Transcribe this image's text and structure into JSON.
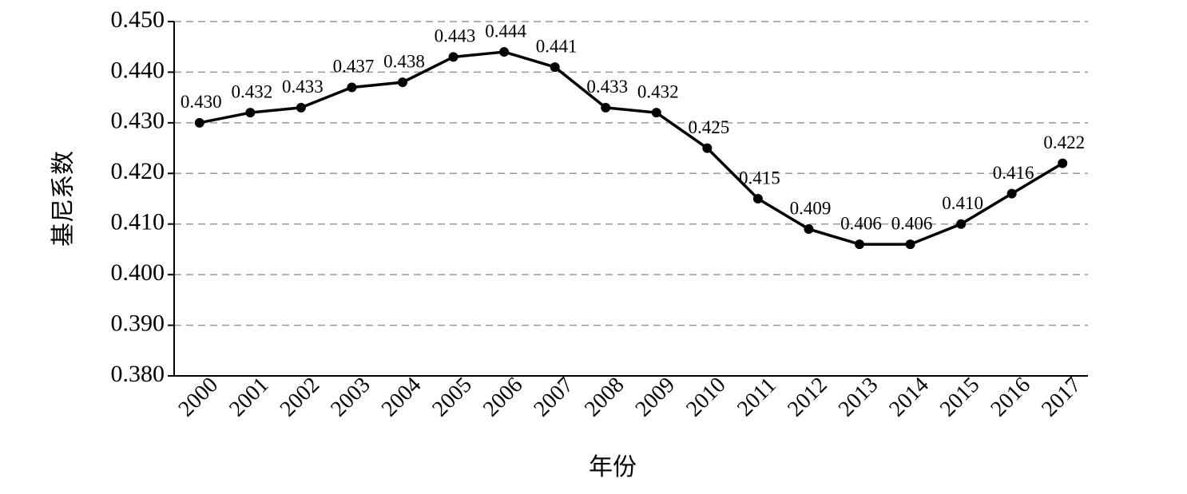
{
  "chart_data": {
    "type": "line",
    "x_label": "年份",
    "y_label": "基尼系数",
    "categories": [
      "2000",
      "2001",
      "2002",
      "2003",
      "2004",
      "2005",
      "2006",
      "2007",
      "2008",
      "2009",
      "2010",
      "2011",
      "2012",
      "2013",
      "2014",
      "2015",
      "2016",
      "2017"
    ],
    "series": [
      {
        "name": "基尼系数",
        "color": "#000000",
        "values": [
          0.43,
          0.432,
          0.433,
          0.437,
          0.438,
          0.443,
          0.444,
          0.441,
          0.433,
          0.432,
          0.425,
          0.415,
          0.409,
          0.406,
          0.406,
          0.41,
          0.416,
          0.422
        ],
        "value_labels": [
          "0.430",
          "0.432",
          "0.433",
          "0.437",
          "0.438",
          "0.443",
          "0.444",
          "0.441",
          "0.433",
          "0.432",
          "0.425",
          "0.415",
          "0.409",
          "0.406",
          "0.406",
          "0.410",
          "0.416",
          "0.422"
        ]
      }
    ],
    "ylim": [
      0.38,
      0.45
    ],
    "yticks": [
      {
        "value": 0.38,
        "label": "0.380"
      },
      {
        "value": 0.39,
        "label": "0.390"
      },
      {
        "value": 0.4,
        "label": "0.400"
      },
      {
        "value": 0.41,
        "label": "0.410"
      },
      {
        "value": 0.42,
        "label": "0.420"
      },
      {
        "value": 0.43,
        "label": "0.430"
      },
      {
        "value": 0.44,
        "label": "0.440"
      },
      {
        "value": 0.45,
        "label": "0.450"
      }
    ],
    "grid": true
  }
}
